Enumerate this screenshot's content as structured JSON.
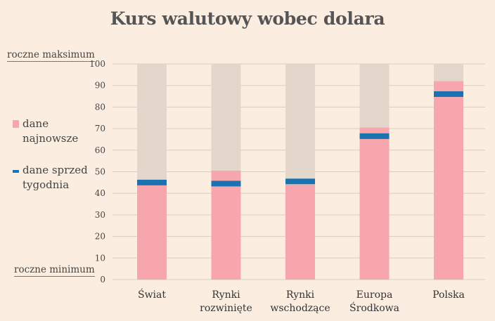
{
  "chart_data": {
    "type": "bar",
    "title": "Kurs walutowy wobec dolara",
    "categories": [
      [
        "Świat"
      ],
      [
        "Rynki",
        "rozwinięte"
      ],
      [
        "Rynki",
        "wschodzące"
      ],
      [
        "Europa",
        "Środkowa"
      ],
      [
        "Polska"
      ]
    ],
    "series": [
      {
        "name": "dane najnowsze",
        "values": [
          44,
          50.5,
          44,
          70.5,
          92
        ]
      },
      {
        "name": "dane sprzed tygodnia",
        "values": [
          45,
          44.5,
          45.5,
          66.5,
          86
        ]
      }
    ],
    "ylim": [
      0,
      100
    ],
    "yticks": [
      0,
      10,
      20,
      30,
      40,
      50,
      60,
      70,
      80,
      90,
      100
    ],
    "y_top_label": "roczne maksimum",
    "y_bottom_label": "roczne minimum",
    "grid": true,
    "legend_position": "left",
    "colors": {
      "latest": "#f7a6ad",
      "prior": "#1a73b0",
      "range": "#e3d7cb",
      "grid": "#d9cdc1"
    }
  },
  "legend": {
    "latest_line1": "dane",
    "latest_line2": "najnowsze",
    "prior_line1": "dane sprzed",
    "prior_line2": "tygodnia"
  }
}
